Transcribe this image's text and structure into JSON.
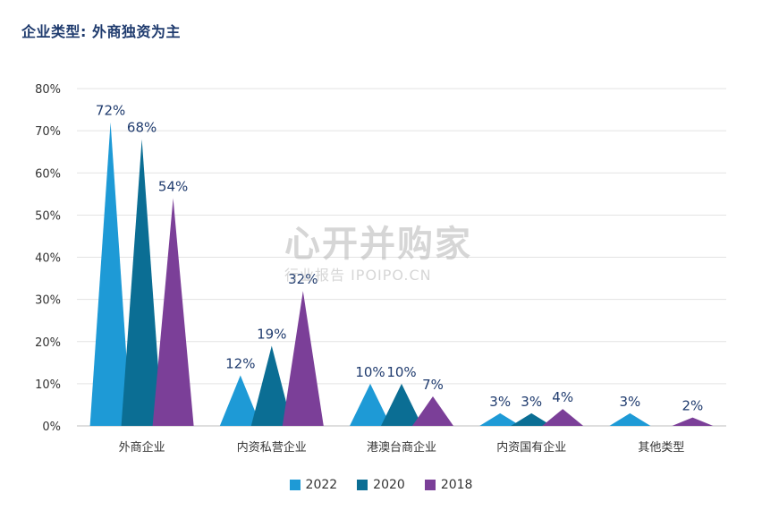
{
  "title": "企业类型: 外商独资为主",
  "watermark": {
    "main": "心开并购家",
    "sub": "行业报告 IPOIPO.CN"
  },
  "chart_data": {
    "type": "bar",
    "categories": [
      "外商企业",
      "内资私营企业",
      "港澳台商企业",
      "内资国有企业",
      "其他类型"
    ],
    "series": [
      {
        "name": "2022",
        "color": "#1e9ad6",
        "values": [
          72,
          12,
          10,
          3,
          3
        ]
      },
      {
        "name": "2020",
        "color": "#0b6e94",
        "values": [
          68,
          19,
          10,
          3,
          null
        ]
      },
      {
        "name": "2018",
        "color": "#7b3f98",
        "values": [
          54,
          32,
          7,
          4,
          2
        ]
      }
    ],
    "value_suffix": "%",
    "ylim": [
      0,
      80
    ],
    "yticks": [
      "0%",
      "10%",
      "20%",
      "30%",
      "40%",
      "50%",
      "60%",
      "70%",
      "80%"
    ],
    "grid": true,
    "legend": "bottom"
  }
}
